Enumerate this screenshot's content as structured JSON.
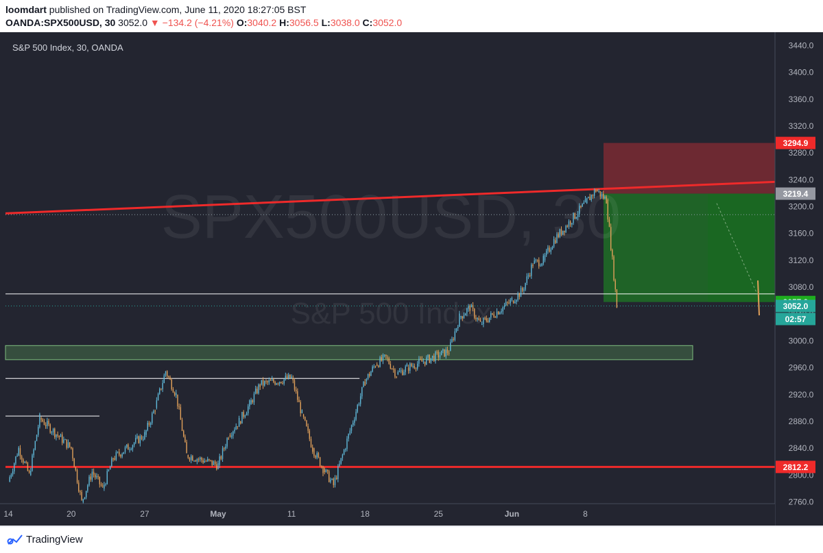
{
  "header": {
    "author": "loomdart",
    "published": "published on TradingView.com, June 11, 2020 18:27:05 BST",
    "symbol": "OANDA:SPX500USD, 30",
    "last": "3052.0",
    "change": "−134.2 (−4.21%)",
    "o_label": "O:",
    "o_value": "3040.2",
    "h_label": "H:",
    "h_value": "3056.5",
    "l_label": "L:",
    "l_value": "3038.0",
    "c_label": "C:",
    "c_value": "3052.0"
  },
  "footer": {
    "brand": "TradingView"
  },
  "chart_data": {
    "type": "line",
    "title": "S&P 500 Index, 30, OANDA",
    "watermark_symbol": "SPX500USD, 30",
    "watermark_name": "S&P 500 Index",
    "x_ticks": [
      "14",
      "20",
      "27",
      "May",
      "11",
      "18",
      "25",
      "Jun",
      "8"
    ],
    "y_ticks": [
      3440,
      3400,
      3360,
      3320,
      3280,
      3240,
      3200,
      3160,
      3120,
      3080,
      3040,
      3000,
      2960,
      2920,
      2880,
      2840,
      2800,
      2760
    ],
    "ylim": [
      2740,
      3460
    ],
    "price_labels": [
      {
        "value": 3294.9,
        "text": "3294.9",
        "color": "#ef2a2a"
      },
      {
        "value": 3219.4,
        "text": "3219.4",
        "color": "#9598a1"
      },
      {
        "value": 3057.9,
        "text": "3057.9",
        "color": "#1fad1f"
      },
      {
        "value": 3052.0,
        "text": "3052.0",
        "color": "#26a69a"
      },
      {
        "value": 2812.2,
        "text": "2812.2",
        "color": "#ef2a2a"
      }
    ],
    "countdown": "02:57",
    "series": [
      {
        "x": [
          "04-14",
          "04-15",
          "04-16",
          "04-17",
          "04-20",
          "04-21",
          "04-22",
          "04-23",
          "04-24",
          "04-27",
          "04-28",
          "04-29",
          "04-30",
          "05-01",
          "05-04",
          "05-05",
          "05-06",
          "05-07",
          "05-08",
          "05-11",
          "05-12",
          "05-13",
          "05-14",
          "05-15",
          "05-18",
          "05-19",
          "05-20",
          "05-21",
          "05-22",
          "05-26",
          "05-27",
          "05-28",
          "05-29",
          "06-01",
          "06-02",
          "06-03",
          "06-04",
          "06-05",
          "06-08",
          "06-09",
          "06-10",
          "06-11"
        ],
        "values": [
          2790,
          2840,
          2800,
          2885,
          2840,
          2760,
          2805,
          2780,
          2825,
          2860,
          2900,
          2955,
          2920,
          2830,
          2815,
          2860,
          2880,
          2905,
          2935,
          2945,
          2890,
          2840,
          2810,
          2785,
          2940,
          2965,
          2975,
          2950,
          2960,
          2985,
          3035,
          3050,
          3025,
          3060,
          3075,
          3115,
          3120,
          3150,
          3205,
          3225,
          3210,
          3052
        ]
      }
    ],
    "annotations": [
      {
        "type": "trendline",
        "from": [
          "04-14",
          3190
        ],
        "to": [
          "06-12",
          3237
        ],
        "color": "#ef2a2a"
      },
      {
        "type": "hline",
        "value": 2812.2,
        "color": "#ef2a2a"
      },
      {
        "type": "hline",
        "value": 3070,
        "color": "#ffffff"
      },
      {
        "type": "segment",
        "from": [
          "04-14",
          2944
        ],
        "to": [
          "05-18",
          2944
        ],
        "color": "#ffffff"
      },
      {
        "type": "segment",
        "from": [
          "04-14",
          2888
        ],
        "to": [
          "04-24",
          2888
        ],
        "color": "#ffffff"
      },
      {
        "type": "zone",
        "y1": 2972,
        "y2": 2993,
        "color": "#3f5f45"
      },
      {
        "type": "stop_zone",
        "y1": 3219.4,
        "y2": 3294.9,
        "color": "#7a2a33"
      },
      {
        "type": "target_zone",
        "y1": 3057.9,
        "y2": 3219.4,
        "color": "#1e6e26"
      }
    ]
  }
}
